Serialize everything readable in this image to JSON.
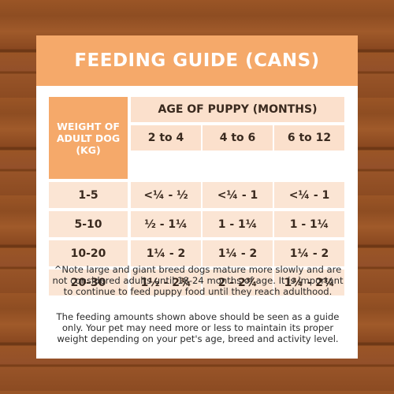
{
  "title": "FEEDING GUIDE (CANS)",
  "table": {
    "weight_header": "WEIGHT OF ADULT DOG (KG)",
    "age_header": "AGE OF PUPPY (MONTHS)",
    "age_columns": [
      "2 to 4",
      "4 to 6",
      "6 to 12"
    ],
    "rows": [
      {
        "weight": "1-5",
        "values": [
          "<¼ - ½",
          "<¼ - 1",
          "<¼ - 1"
        ]
      },
      {
        "weight": "5-10",
        "values": [
          "½ - 1¼",
          "1 - 1¼",
          "1 - 1¼"
        ]
      },
      {
        "weight": "10-20",
        "values": [
          "1¼ - 2",
          "1¼ - 2",
          "1¼ - 2"
        ]
      },
      {
        "weight": "20-30",
        "values": [
          "1½ - 2¾",
          "2 - 2¾",
          "1¾ - 2¾"
        ]
      }
    ]
  },
  "notes": {
    "note1": "^Note large and giant breed dogs mature more slowly and are not considered adults until 18-24 months of age. It is important to continue to feed puppy food until they reach adulthood.",
    "note2": "The feeding amounts shown above should be seen as a guide only. Your pet may need more or less to maintain its proper weight depending on your pet's age, breed and activity level."
  },
  "colors": {
    "accent": "#f5a96a",
    "cell_bg": "#fbe5d4",
    "background": "#8a4a1f"
  }
}
